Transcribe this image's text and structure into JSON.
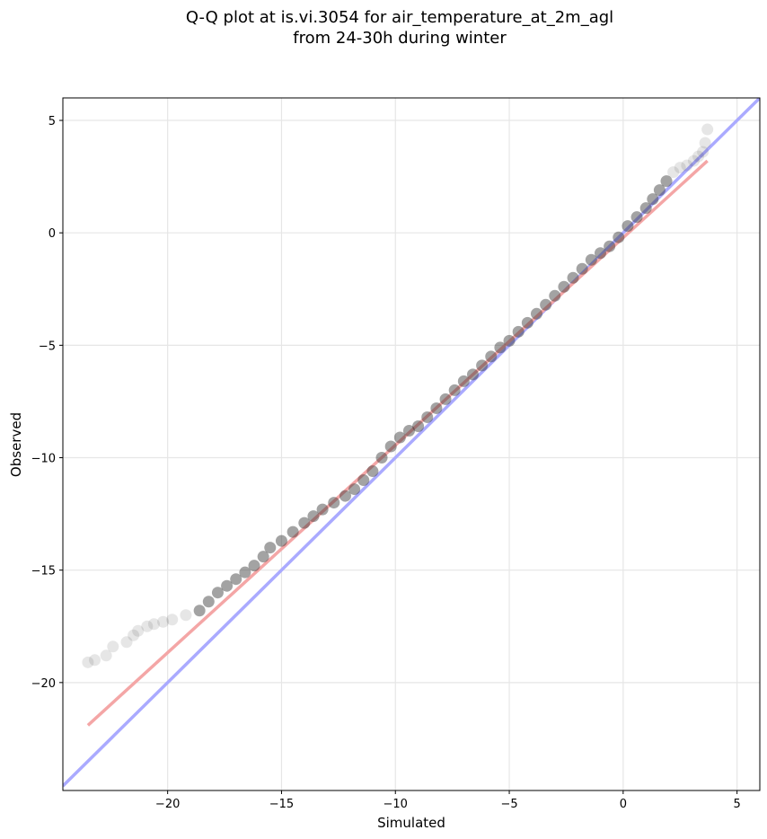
{
  "chart_data": {
    "type": "scatter",
    "title_line1": "Q-Q plot at is.vi.3054 for air_temperature_at_2m_agl",
    "title_line2": "from 24-30h during winter",
    "xlabel": "Simulated",
    "ylabel": "Observed",
    "xlim": [
      -24.6,
      6.0
    ],
    "ylim": [
      -24.8,
      6.0
    ],
    "xticks": [
      -20,
      -15,
      -10,
      -5,
      0,
      5
    ],
    "yticks": [
      -20,
      -15,
      -10,
      -5,
      0,
      5
    ],
    "xtick_labels": [
      "−20",
      "−15",
      "−10",
      "−5",
      "0",
      "5"
    ],
    "ytick_labels": [
      "−20",
      "−15",
      "−10",
      "−5",
      "0",
      "5"
    ],
    "grid": true,
    "identity_line_color": "#aaaaff",
    "fit_line_color": "#f4a6a6",
    "point_color": "#333333",
    "fit_line": {
      "x": [
        -23.5,
        3.7
      ],
      "y": [
        -21.9,
        3.2
      ]
    },
    "identity_line": {
      "x": [
        -24.6,
        6.0
      ],
      "y": [
        -24.6,
        6.0
      ]
    },
    "quantile_points": {
      "x": [
        -23.5,
        -23.2,
        -22.7,
        -22.4,
        -21.8,
        -21.5,
        -21.3,
        -20.9,
        -20.6,
        -20.2,
        -19.8,
        -19.2,
        -18.6,
        -18.2,
        -17.8,
        -17.4,
        -17.0,
        -16.6,
        -16.2,
        -15.8,
        -15.5,
        -15.0,
        -14.5,
        -14.0,
        -13.6,
        -13.2,
        -12.7,
        -12.2,
        -11.8,
        -11.4,
        -11.0,
        -10.6,
        -10.2,
        -9.8,
        -9.4,
        -9.0,
        -8.6,
        -8.2,
        -7.8,
        -7.4,
        -7.0,
        -6.6,
        -6.2,
        -5.8,
        -5.4,
        -5.0,
        -4.6,
        -4.2,
        -3.8,
        -3.4,
        -3.0,
        -2.6,
        -2.2,
        -1.8,
        -1.4,
        -1.0,
        -0.6,
        -0.2,
        0.2,
        0.6,
        1.0,
        1.3,
        1.6,
        1.9,
        2.2,
        2.5,
        2.8,
        3.1,
        3.3,
        3.5,
        3.6,
        3.7
      ],
      "y": [
        -19.1,
        -19.0,
        -18.8,
        -18.4,
        -18.2,
        -17.9,
        -17.7,
        -17.5,
        -17.4,
        -17.3,
        -17.2,
        -17.0,
        -16.8,
        -16.4,
        -16.0,
        -15.7,
        -15.4,
        -15.1,
        -14.8,
        -14.4,
        -14.0,
        -13.7,
        -13.3,
        -12.9,
        -12.6,
        -12.3,
        -12.0,
        -11.7,
        -11.4,
        -11.0,
        -10.6,
        -10.0,
        -9.5,
        -9.1,
        -8.8,
        -8.6,
        -8.2,
        -7.8,
        -7.4,
        -7.0,
        -6.6,
        -6.3,
        -5.9,
        -5.5,
        -5.1,
        -4.8,
        -4.4,
        -4.0,
        -3.6,
        -3.2,
        -2.8,
        -2.4,
        -2.0,
        -1.6,
        -1.2,
        -0.9,
        -0.6,
        -0.2,
        0.3,
        0.7,
        1.1,
        1.5,
        1.9,
        2.3,
        2.7,
        2.9,
        3.0,
        3.2,
        3.4,
        3.6,
        4.0,
        4.6
      ]
    }
  }
}
